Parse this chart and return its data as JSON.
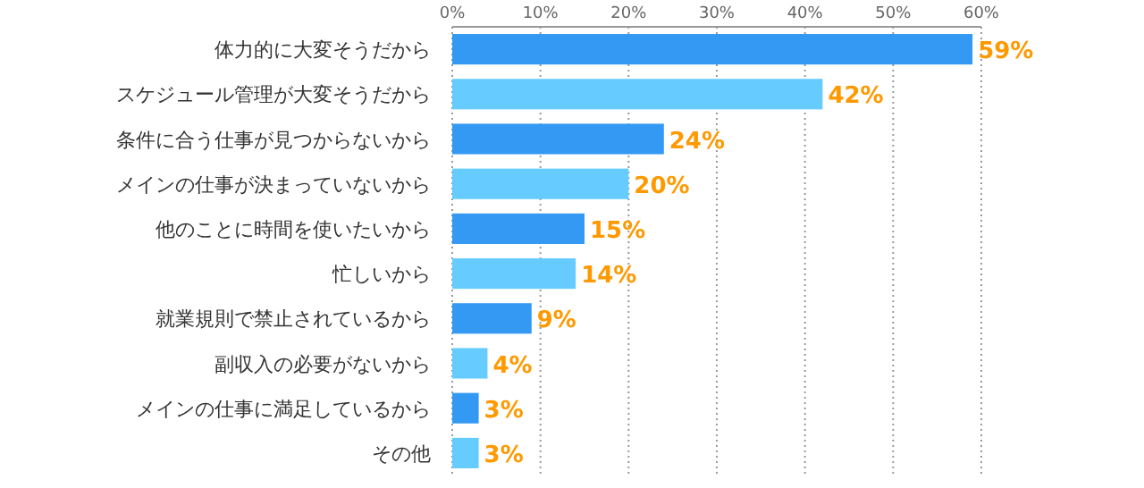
{
  "chart_data": {
    "type": "bar",
    "orientation": "horizontal",
    "categories": [
      "体力的に大変そうだから",
      "スケジュール管理が大変そうだから",
      "条件に合う仕事が見つからないから",
      "メインの仕事が決まっていないから",
      "他のことに時間を使いたいから",
      "忙しいから",
      "就業規則で禁止されているから",
      "副収入の必要がないから",
      "メインの仕事に満足しているから",
      "その他"
    ],
    "values": [
      59,
      42,
      24,
      20,
      15,
      14,
      9,
      4,
      3,
      3
    ],
    "colors": [
      "#3399f3",
      "#66ccff",
      "#3399f3",
      "#66ccff",
      "#3399f3",
      "#66ccff",
      "#3399f3",
      "#66ccff",
      "#3399f3",
      "#66ccff"
    ],
    "value_labels": [
      "59%",
      "42%",
      "24%",
      "20%",
      "15%",
      "14%",
      "9%",
      "4%",
      "3%",
      "3%"
    ],
    "xlim": [
      0,
      60
    ],
    "xticks": [
      {
        "value": 0,
        "label": "0%"
      },
      {
        "value": 10,
        "label": "10%"
      },
      {
        "value": 20,
        "label": "20%"
      },
      {
        "value": 30,
        "label": "30%"
      },
      {
        "value": 40,
        "label": "40%"
      },
      {
        "value": 50,
        "label": "50%"
      },
      {
        "value": 60,
        "label": "60%"
      }
    ],
    "grid": "x"
  }
}
